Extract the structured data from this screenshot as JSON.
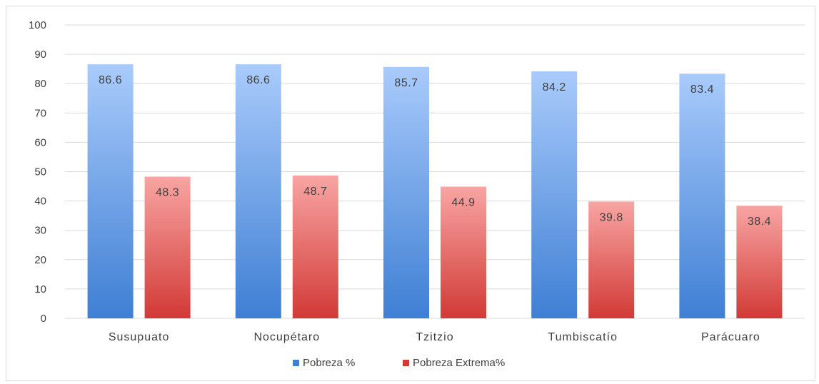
{
  "chart_data": {
    "type": "bar",
    "categories": [
      "Susupuato",
      "Nocupétaro",
      "Tzitzio",
      "Tumbiscatío",
      "Parácuaro"
    ],
    "series": [
      {
        "name": "Pobreza %",
        "values": [
          86.6,
          86.6,
          85.7,
          84.2,
          83.4
        ],
        "color_top": "#a9cbfb",
        "color_bottom": "#3f7fd4"
      },
      {
        "name": "Pobreza Extrema%",
        "values": [
          48.3,
          48.7,
          44.9,
          39.8,
          38.4
        ],
        "color_top": "#f8a5a3",
        "color_bottom": "#d23a36"
      }
    ],
    "ylim": [
      0,
      100
    ],
    "yticks": [
      0,
      10,
      20,
      30,
      40,
      50,
      60,
      70,
      80,
      90,
      100
    ],
    "grid": true,
    "legend": "bottom-center",
    "data_labels": "inside-top"
  }
}
